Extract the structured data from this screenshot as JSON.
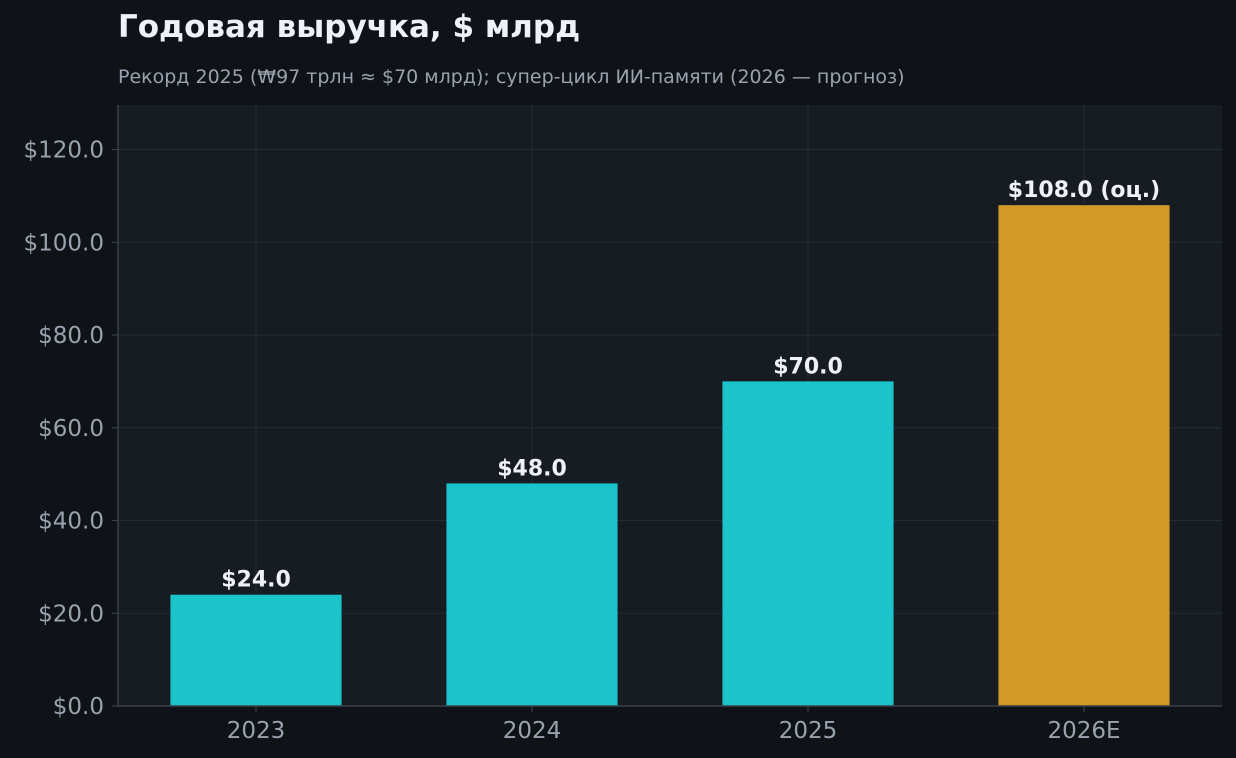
{
  "chart_data": {
    "type": "bar",
    "title": "Годовая выручка, $ млрд",
    "subtitle": "Рекорд 2025 (₩97 трлн ≈ $70 млрд); супер-цикл ИИ-памяти (2026 — прогноз)",
    "categories": [
      "2023",
      "2024",
      "2025",
      "2026E"
    ],
    "values": [
      24.0,
      48.0,
      70.0,
      108.0
    ],
    "data_labels": [
      "$24.0",
      "$48.0",
      "$70.0",
      "$108.0 (оц.)"
    ],
    "bar_colors": [
      "#1bc4cb",
      "#1bc4cb",
      "#1bc4cb",
      "#d19a24"
    ],
    "yticks": [
      0,
      20,
      40,
      60,
      80,
      100,
      120
    ],
    "ytick_labels": [
      "$0.0",
      "$20.0",
      "$40.0",
      "$60.0",
      "$80.0",
      "$100.0",
      "$120.0"
    ],
    "ylim": [
      0,
      129.6
    ],
    "xlabel": "",
    "ylabel": "",
    "grid": true,
    "legend": "none"
  },
  "colors": {
    "background": "#0f1318",
    "plot_background": "#171b22",
    "grid": "#262c35",
    "axis": "#3a414b",
    "text": "#eef2f6",
    "muted_text": "#9aa3ad"
  }
}
